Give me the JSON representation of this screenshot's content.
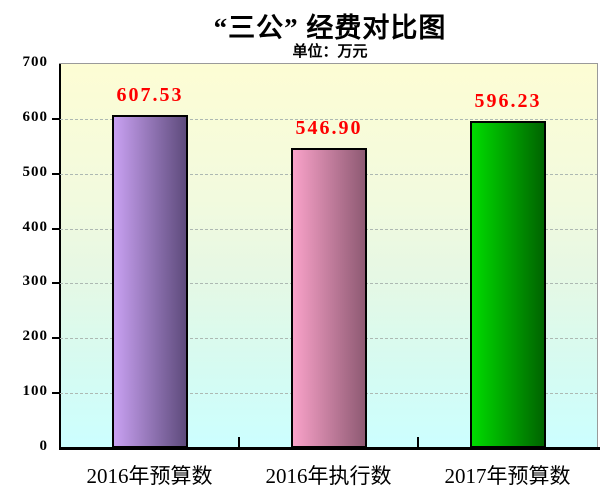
{
  "page": {
    "background": "#ffffff"
  },
  "chart_data": {
    "type": "bar",
    "title": "“三公” 经费对比图",
    "subtitle": "单位：万元",
    "categories": [
      "2016年预算数",
      "2016年执行数",
      "2017年预算数"
    ],
    "values": [
      607.53,
      546.9,
      596.23
    ],
    "value_labels": [
      "607.53",
      "546.90",
      "596.23"
    ],
    "ylim": [
      0,
      700
    ],
    "ytick_step": 100,
    "yticks": [
      "0",
      "100",
      "200",
      "300",
      "400",
      "500",
      "600",
      "700"
    ],
    "grid": "horizontal dotted gridlines every 100",
    "legend": "none",
    "value_label_color": "#fe0000",
    "gridline_color": "#adb8b2",
    "axis_color": "#000000",
    "plot_frame_color": "#9a9a9a",
    "plot_bg_gradient": [
      "#fdfdd4",
      "#f2fade",
      "#e6f8e4",
      "#d5fbf2",
      "#ccffff"
    ],
    "bar_gradients": [
      {
        "light": "#c9a1f2",
        "dark": "#5e4b7c"
      },
      {
        "light": "#f9a2c9",
        "dark": "#8e5a73"
      },
      {
        "light": "#00dc00",
        "dark": "#006400"
      }
    ],
    "bar_border_color": "#000000"
  }
}
